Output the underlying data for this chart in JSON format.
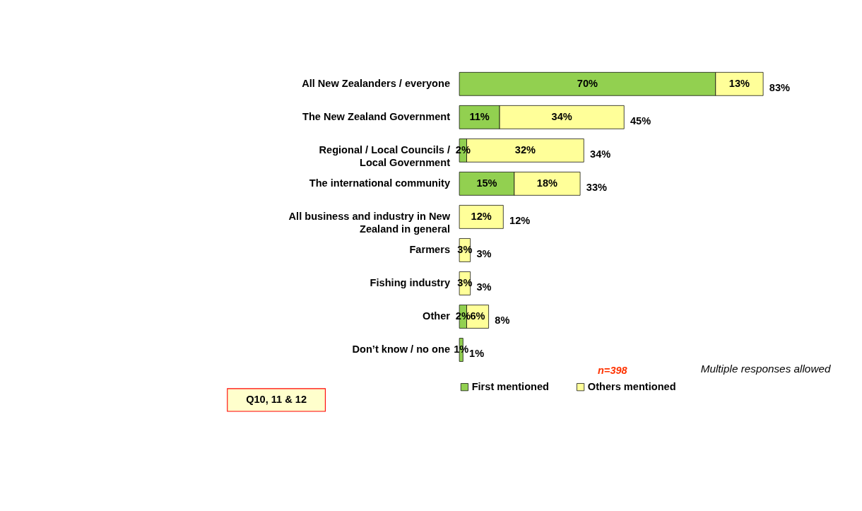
{
  "chart_data": {
    "type": "bar",
    "orientation": "horizontal",
    "stacked": true,
    "categories": [
      "All New Zealanders / everyone",
      "The New Zealand Government",
      "Regional / Local Councils / Local Government",
      "The international community",
      "All business and industry in New Zealand in general",
      "Farmers",
      "Fishing industry",
      "Other",
      "Don’t know / no one"
    ],
    "series": [
      {
        "name": "First mentioned",
        "color": "#92d050",
        "values": [
          70,
          11,
          2,
          15,
          null,
          null,
          null,
          2,
          1
        ],
        "value_labels": [
          "70%",
          "11%",
          "2%",
          "15%",
          null,
          null,
          null,
          "2%",
          "1%"
        ]
      },
      {
        "name": "Others mentioned",
        "color": "#ffff99",
        "values": [
          13,
          34,
          32,
          18,
          12,
          3,
          3,
          6,
          null
        ],
        "value_labels": [
          "13%",
          "34%",
          "32%",
          "18%",
          "12%",
          "3%",
          "3%",
          "6%",
          null
        ]
      }
    ],
    "totals": [
      "83%",
      "45%",
      "34%",
      "33%",
      "12%",
      "3%",
      "3%",
      "8%",
      "1%"
    ],
    "legend": "bottom",
    "annotations": [
      "n=398",
      "Multiple responses allowed",
      "Q10, 11 & 12"
    ]
  }
}
